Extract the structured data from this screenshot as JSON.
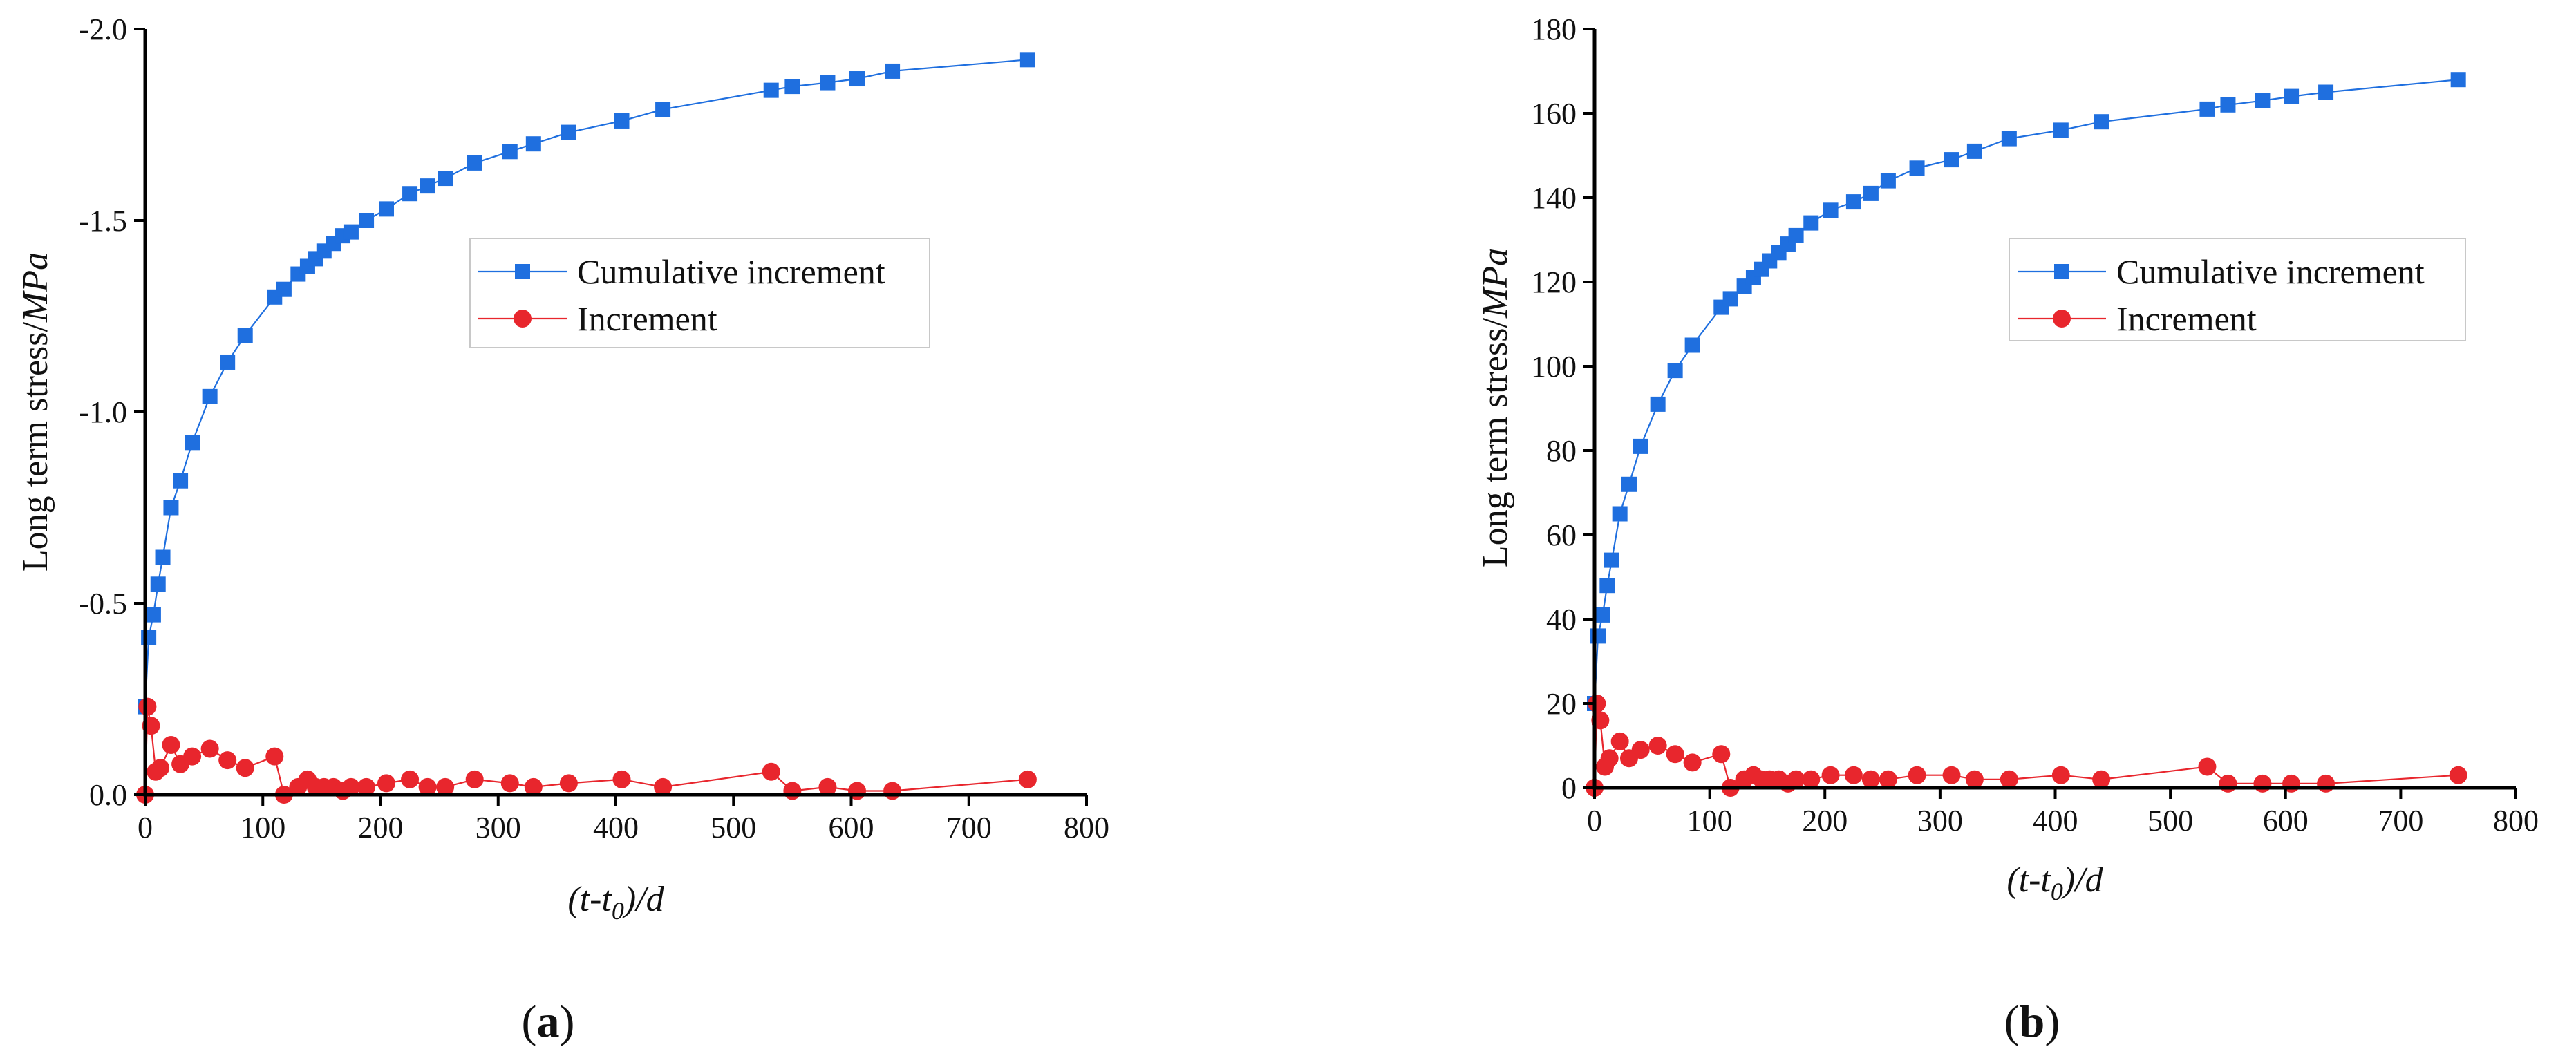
{
  "chart_data": [
    {
      "panel": "a",
      "panel_label": "(a)",
      "type": "line",
      "xlabel": "(t-t0)/d",
      "ylabel": "Long term stress/MPa",
      "xlim": [
        0,
        800
      ],
      "ylim": [
        0,
        -2.0
      ],
      "y_inverted": true,
      "x_ticks": [
        "0",
        "100",
        "200",
        "300",
        "400",
        "500",
        "600",
        "700",
        "800"
      ],
      "y_ticks": [
        "0.0",
        "-0.5",
        "-1.0",
        "-1.5",
        "-2.0"
      ],
      "legend_placement": "center-right",
      "series": [
        {
          "name": "Cumulative increment",
          "color": "#1f6fdf",
          "marker": "square",
          "x": [
            0,
            3,
            7,
            11,
            15,
            22,
            30,
            40,
            55,
            70,
            85,
            110,
            118,
            130,
            138,
            145,
            152,
            160,
            168,
            175,
            188,
            205,
            225,
            240,
            255,
            280,
            310,
            330,
            360,
            405,
            440,
            532,
            550,
            580,
            605,
            635,
            750
          ],
          "y": [
            -0.23,
            -0.41,
            -0.47,
            -0.55,
            -0.62,
            -0.75,
            -0.82,
            -0.92,
            -1.04,
            -1.13,
            -1.2,
            -1.3,
            -1.32,
            -1.36,
            -1.38,
            -1.4,
            -1.42,
            -1.44,
            -1.46,
            -1.47,
            -1.5,
            -1.53,
            -1.57,
            -1.59,
            -1.61,
            -1.65,
            -1.68,
            -1.7,
            -1.73,
            -1.76,
            -1.79,
            -1.84,
            -1.85,
            -1.86,
            -1.87,
            -1.89,
            -1.92
          ]
        },
        {
          "name": "Increment",
          "color": "#e8262d",
          "marker": "circle",
          "x": [
            0,
            2,
            5,
            9,
            13,
            22,
            30,
            40,
            55,
            70,
            85,
            110,
            118,
            130,
            138,
            145,
            152,
            160,
            168,
            175,
            188,
            205,
            225,
            240,
            255,
            280,
            310,
            330,
            360,
            405,
            440,
            532,
            550,
            580,
            605,
            635,
            750
          ],
          "y": [
            0.0,
            -0.23,
            -0.18,
            -0.06,
            -0.07,
            -0.13,
            -0.08,
            -0.1,
            -0.12,
            -0.09,
            -0.07,
            -0.1,
            0.0,
            -0.02,
            -0.04,
            -0.02,
            -0.02,
            -0.02,
            -0.01,
            -0.02,
            -0.02,
            -0.03,
            -0.04,
            -0.02,
            -0.02,
            -0.04,
            -0.03,
            -0.02,
            -0.03,
            -0.04,
            -0.02,
            -0.06,
            -0.01,
            -0.02,
            -0.01,
            -0.01,
            -0.04
          ]
        }
      ]
    },
    {
      "panel": "b",
      "panel_label": "(b)",
      "type": "line",
      "xlabel": "(t-t0)/d",
      "ylabel": "Long term stress/MPa",
      "xlim": [
        0,
        800
      ],
      "ylim": [
        0,
        180
      ],
      "y_inverted": false,
      "x_ticks": [
        "0",
        "100",
        "200",
        "300",
        "400",
        "500",
        "600",
        "700",
        "800"
      ],
      "y_ticks": [
        "0",
        "20",
        "40",
        "60",
        "80",
        "100",
        "120",
        "140",
        "160",
        "180"
      ],
      "legend_placement": "center-right",
      "series": [
        {
          "name": "Cumulative increment",
          "color": "#1f6fdf",
          "marker": "square",
          "x": [
            0,
            3,
            7,
            11,
            15,
            22,
            30,
            40,
            55,
            70,
            85,
            110,
            118,
            130,
            138,
            145,
            152,
            160,
            168,
            175,
            188,
            205,
            225,
            240,
            255,
            280,
            310,
            330,
            360,
            405,
            440,
            532,
            550,
            580,
            605,
            635,
            750
          ],
          "y": [
            20,
            36,
            41,
            48,
            54,
            65,
            72,
            81,
            91,
            99,
            105,
            114,
            116,
            119,
            121,
            123,
            125,
            127,
            129,
            131,
            134,
            137,
            139,
            141,
            144,
            147,
            149,
            151,
            154,
            156,
            158,
            161,
            162,
            163,
            164,
            165,
            168
          ]
        },
        {
          "name": "Increment",
          "color": "#e8262d",
          "marker": "circle",
          "x": [
            0,
            2,
            5,
            9,
            13,
            22,
            30,
            40,
            55,
            70,
            85,
            110,
            118,
            130,
            138,
            145,
            152,
            160,
            168,
            175,
            188,
            205,
            225,
            240,
            255,
            280,
            310,
            330,
            360,
            405,
            440,
            532,
            550,
            580,
            605,
            635,
            750
          ],
          "y": [
            0,
            20,
            16,
            5,
            7,
            11,
            7,
            9,
            10,
            8,
            6,
            8,
            0,
            2,
            3,
            2,
            2,
            2,
            1,
            2,
            2,
            3,
            3,
            2,
            2,
            3,
            3,
            2,
            2,
            3,
            2,
            5,
            1,
            1,
            1,
            1,
            3
          ]
        }
      ]
    }
  ]
}
